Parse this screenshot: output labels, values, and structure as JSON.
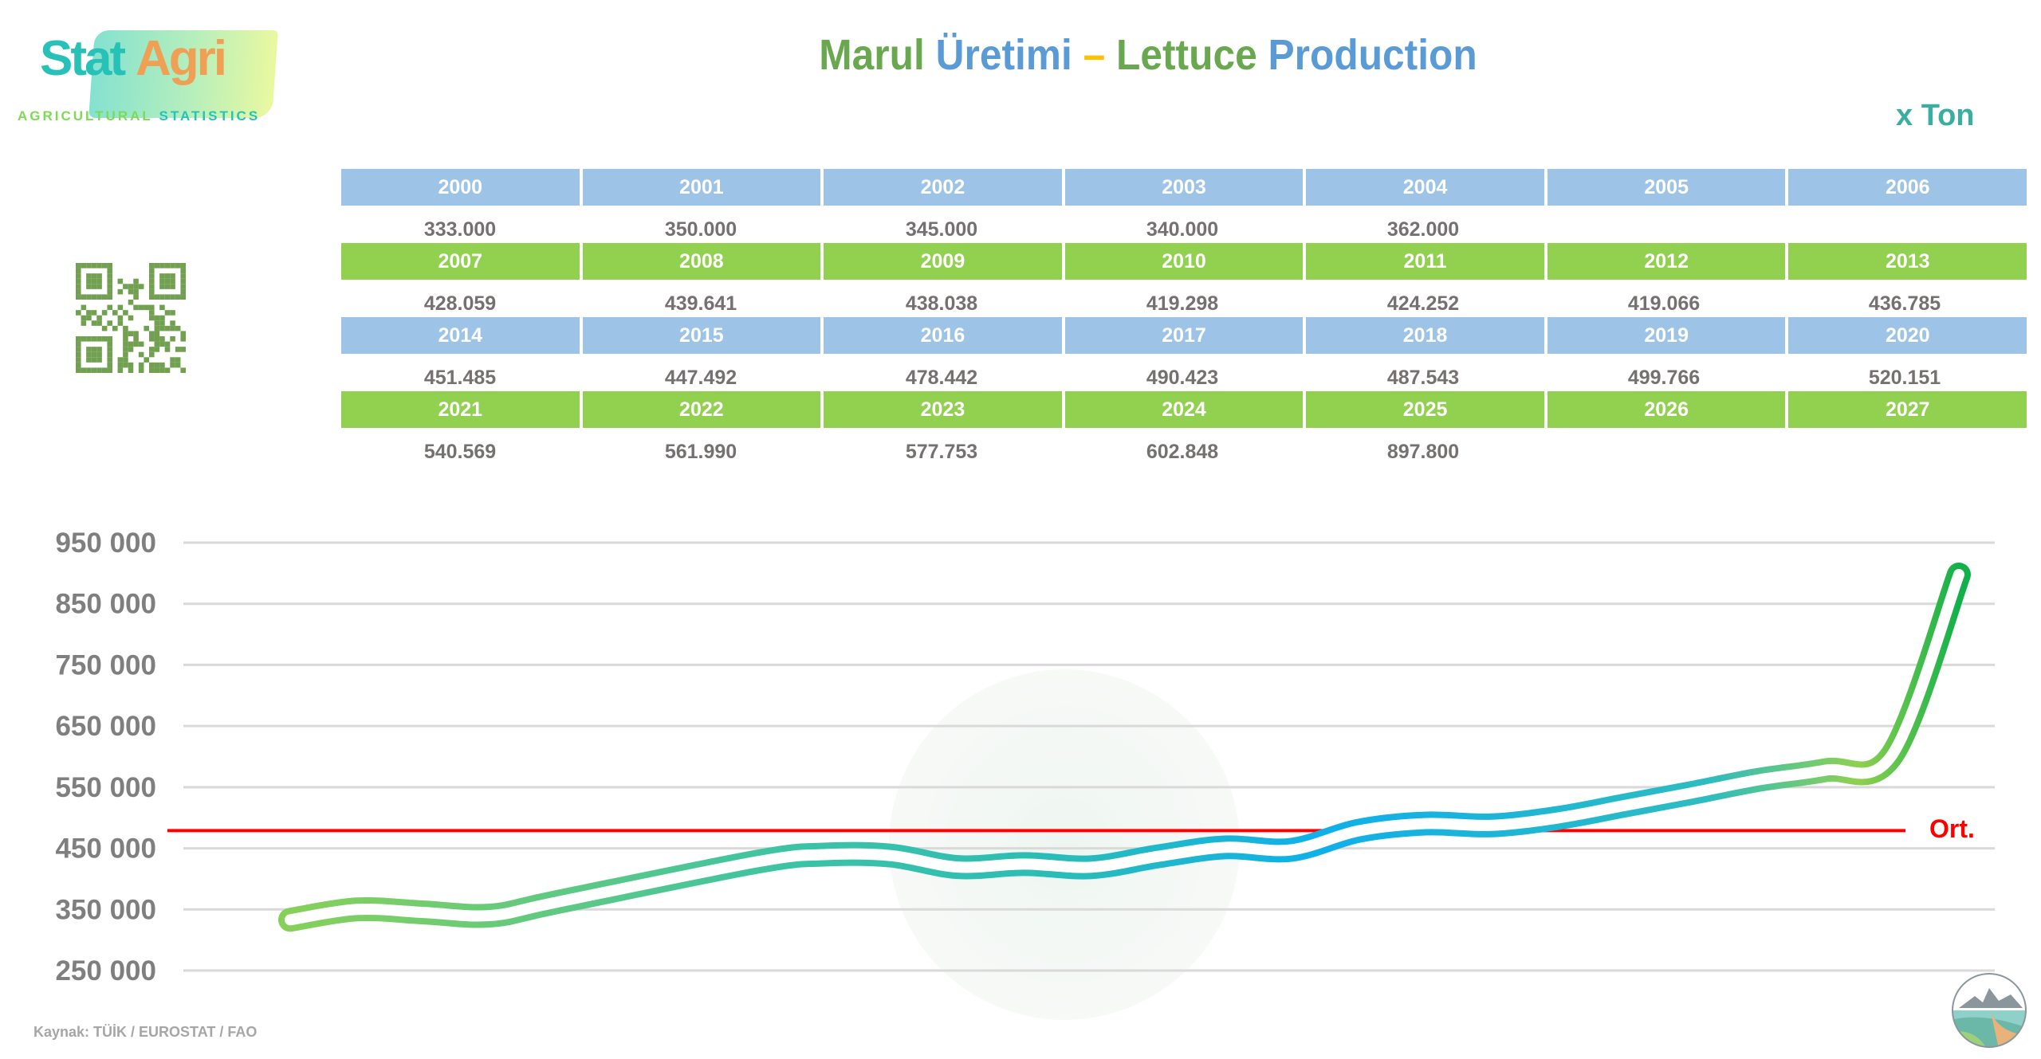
{
  "logo": {
    "word1": "Stat",
    "word2": "Agri",
    "tagline_1": "AGRICULTURAL",
    "tagline_2": "STATISTICS"
  },
  "title": {
    "part1_tr_a": "Marul",
    "part1_tr_b": "Üretimi",
    "separator": "–",
    "part2_en_a": "Lettuce",
    "part2_en_b": "Production"
  },
  "unit": "x Ton",
  "colors": {
    "header_blue": "#9dc3e6",
    "header_green": "#92d050",
    "average_line": "#ff0000",
    "title_green": "#6aa84f",
    "title_blue": "#5b9bd5",
    "separator": "#ffc000"
  },
  "table": {
    "rows": [
      {
        "style": "blue",
        "years": [
          "2000",
          "2001",
          "2002",
          "2003",
          "2004",
          "2005",
          "2006"
        ],
        "values": [
          "333.000",
          "350.000",
          "345.000",
          "340.000",
          "362.000",
          "",
          ""
        ]
      },
      {
        "style": "green",
        "years": [
          "2007",
          "2008",
          "2009",
          "2010",
          "2011",
          "2012",
          "2013"
        ],
        "values": [
          "428.059",
          "439.641",
          "438.038",
          "419.298",
          "424.252",
          "419.066",
          "436.785"
        ]
      },
      {
        "style": "blue",
        "years": [
          "2014",
          "2015",
          "2016",
          "2017",
          "2018",
          "2019",
          "2020"
        ],
        "values": [
          "451.485",
          "447.492",
          "478.442",
          "490.423",
          "487.543",
          "499.766",
          "520.151"
        ]
      },
      {
        "style": "green",
        "years": [
          "2021",
          "2022",
          "2023",
          "2024",
          "2025",
          "2026",
          "2027"
        ],
        "values": [
          "540.569",
          "561.990",
          "577.753",
          "602.848",
          "897.800",
          "",
          ""
        ]
      }
    ]
  },
  "chart_data": {
    "type": "line",
    "title": "",
    "xlabel": "",
    "ylabel": "",
    "x": [
      2000,
      2001,
      2002,
      2003,
      2004,
      2005,
      2006,
      2007,
      2008,
      2009,
      2010,
      2011,
      2012,
      2013,
      2014,
      2015,
      2016,
      2017,
      2018,
      2019,
      2020,
      2021,
      2022,
      2023,
      2024,
      2025
    ],
    "values": [
      333000,
      350000,
      345000,
      340000,
      362000,
      null,
      null,
      428059,
      439641,
      438038,
      419298,
      424252,
      419066,
      436785,
      451485,
      447492,
      478442,
      490423,
      487543,
      499766,
      520151,
      540569,
      561990,
      577753,
      602848,
      897800
    ],
    "ylim": [
      250000,
      950000
    ],
    "yticks": [
      250000,
      350000,
      450000,
      550000,
      650000,
      750000,
      850000,
      950000
    ],
    "ytick_labels": [
      "250 000",
      "350 000",
      "450 000",
      "550 000",
      "650 000",
      "750 000",
      "850 000",
      "950 000"
    ],
    "grid": "horizontal",
    "average": {
      "label": "Ort.",
      "value": 479000
    }
  },
  "source": "Kaynak: TÜİK / EUROSTAT / FAO"
}
